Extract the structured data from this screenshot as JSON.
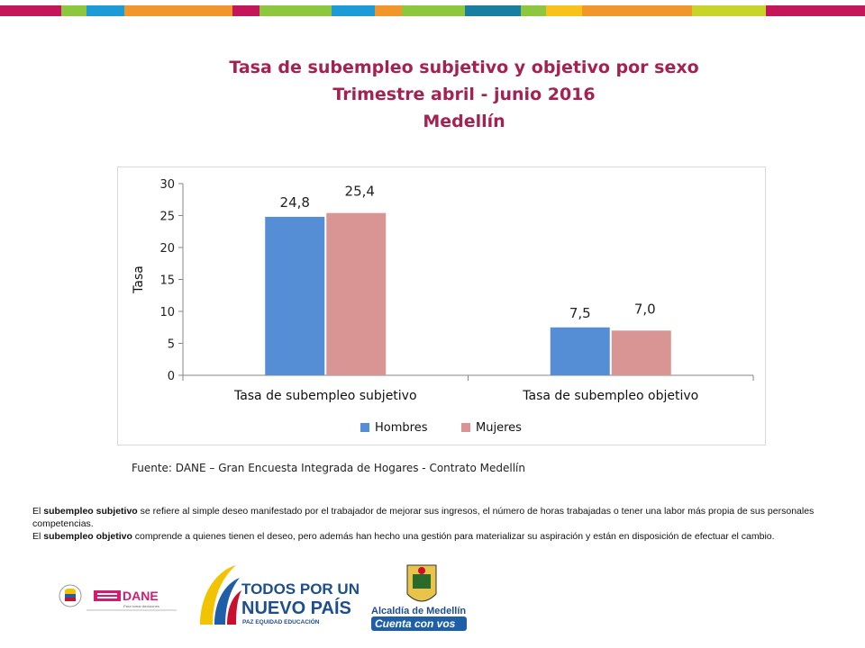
{
  "title": {
    "line1": "Tasa de subempleo subjetivo y objetivo por sexo",
    "line2": "Trimestre abril - junio 2016",
    "line3": "Medellín"
  },
  "chart_data": {
    "type": "bar",
    "categories": [
      "Tasa de subempleo subjetivo",
      "Tasa de subempleo objetivo"
    ],
    "series": [
      {
        "name": "Hombres",
        "values": [
          24.8,
          7.5
        ],
        "labels": [
          "24,8",
          "7,5"
        ],
        "color": "#558ed5"
      },
      {
        "name": "Mujeres",
        "values": [
          25.4,
          7.0
        ],
        "labels": [
          "25,4",
          "7,0"
        ],
        "color": "#d99594"
      }
    ],
    "ylabel": "Tasa",
    "ylim": [
      0,
      30
    ],
    "yticks": [
      0,
      5,
      10,
      15,
      20,
      25,
      30
    ],
    "legend": "bottom",
    "grid": false
  },
  "source": "Fuente: DANE – Gran Encuesta Integrada de Hogares - Contrato Medellín",
  "notes": [
    {
      "pre": "El ",
      "term": "subempleo subjetivo",
      "post": " se refiere al simple deseo manifestado por el trabajador de mejorar sus ingresos, el número de horas trabajadas o tener una labor más propia de sus personales competencias."
    },
    {
      "pre": "El ",
      "term": "subempleo objetivo",
      "post": " comprende a quienes tienen el deseo, pero además han hecho una gestión para materializar su aspiración y están en disposición de efectuar el cambio."
    }
  ],
  "logos": {
    "dane": "DANE",
    "dane_tagline": "Para tomar decisiones",
    "todos_line1": "TODOS POR UN",
    "todos_line2": "NUEVO PAÍS",
    "todos_tagline": "PAZ  EQUIDAD  EDUCACIÓN",
    "alcaldia": "Alcaldía de Medellín",
    "alcaldia_tagline": "Cuenta con vos"
  },
  "colors": {
    "title": "#a3224f",
    "hombres": "#558ed5",
    "mujeres": "#d99594",
    "bar_segments": [
      "#c4175a",
      "#8dc63f",
      "#1d9bd7",
      "#f0962a",
      "#c4175a",
      "#8dc63f",
      "#1d9bd7",
      "#f0962a",
      "#8dc63f",
      "#1a7ea0",
      "#8dc63f",
      "#f7c21a",
      "#f0962a",
      "#c8d42a",
      "#c4175a"
    ]
  }
}
